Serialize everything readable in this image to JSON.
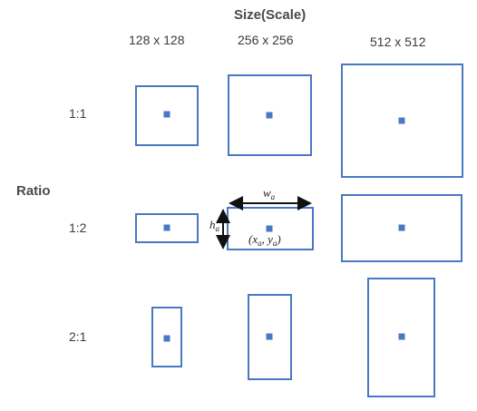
{
  "header": {
    "title": "Size(Scale)"
  },
  "columns": [
    "128 x 128",
    "256 x 256",
    "512 x 512"
  ],
  "rows": [
    "1:1",
    "1:2",
    "2:1"
  ],
  "side_label": "Ratio",
  "annotation": {
    "width_symbol": "w",
    "width_sub": "a",
    "height_symbol": "h",
    "height_sub": "a",
    "center_open": "(x",
    "center_x_sub": "a",
    "center_mid": ", y",
    "center_y_sub": "a",
    "center_close": ")"
  },
  "colors": {
    "box": "#4a78c2",
    "text": "#3a3a3a"
  }
}
